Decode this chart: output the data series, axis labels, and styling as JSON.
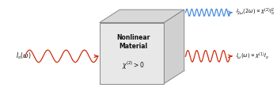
{
  "box_chi": "$\\chi^{(2)} > 0$",
  "input_label": "$I_o(\\omega)$",
  "out_top_label": "$I_{2\\omega}(2\\omega) \\propto \\chi^{(2)}I_o^2$",
  "out_bot_label": "$I_{\\omega}(\\omega) \\propto \\chi^{(1)}I_o$",
  "wave_color_red": "#cc2200",
  "wave_color_blue": "#4488dd",
  "arrow_color_red": "#cc2200",
  "arrow_color_blue": "#4488dd",
  "box_front_color": "#e8e8e8",
  "box_top_color": "#d8d8d8",
  "box_right_color": "#d0d0d0",
  "box_edge_color": "#888888"
}
